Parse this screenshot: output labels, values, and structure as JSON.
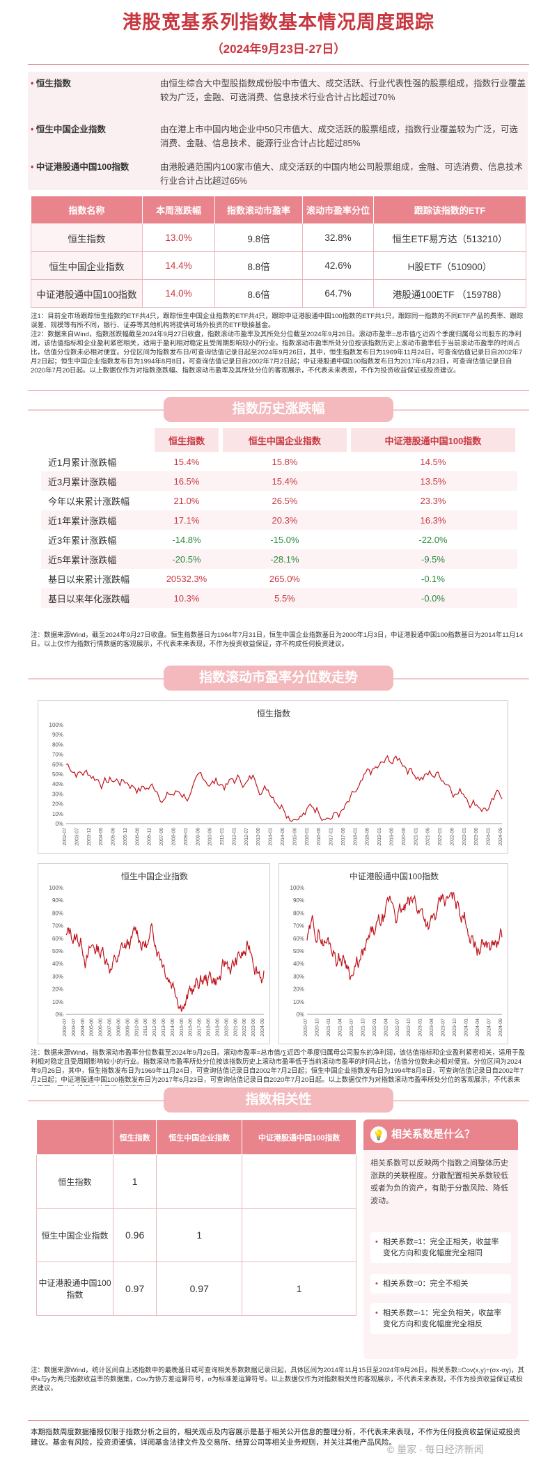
{
  "title": "港股宽基系列指数基本情况周度跟踪",
  "subtitle": "（2024年9月23日-27日）",
  "intro": [
    {
      "name": "恒生指数",
      "desc": "由恒生综合大中型股指数成份股中市值大、成交活跃、行业代表性强的股票组成，指数行业覆盖较为广泛，金融、可选消费、信息技术行业合计占比超过70%"
    },
    {
      "name": "恒生中国企业指数",
      "desc": "由在港上市中国内地企业中50只市值大、成交活跃的股票组成，指数行业覆盖较为广泛，可选消费、金融、信息技术、能源行业合计占比超过85%"
    },
    {
      "name": "中证港股通中国100指数",
      "desc": "由港股通范围内100家市值大、成交活跃的中国内地公司股票组成，金融、可选消费、信息技术行业合计占比超过65%"
    }
  ],
  "table1": {
    "headers": [
      "指数名称",
      "本周涨跌幅",
      "指数滚动市盈率",
      "滚动市盈率分位",
      "跟踪该指数的ETF"
    ],
    "rows": [
      [
        "恒生指数",
        "13.0%",
        "9.8倍",
        "32.8%",
        "恒生ETF易方达（513210）"
      ],
      [
        "恒生中国企业指数",
        "14.4%",
        "8.8倍",
        "42.6%",
        "H股ETF（510900）"
      ],
      [
        "中证港股通中国100指数",
        "14.0%",
        "8.6倍",
        "64.7%",
        "港股通100ETF （159788）"
      ]
    ]
  },
  "note1": "注1：目前全市场跟踪恒生指数的ETF共4只，跟踪恒生中国企业指数的ETF共4只，跟踪中证港股通中国100指数的ETF共1只，跟踪同一指数的不同ETF产品的费率、跟踪误差、规模等有所不同，银行、证券等其他机构将提供可场外投资的ETF联接基金。\n注2：数据来自Wind，指数涨跌幅截至2024年9月27日收盘，指数滚动市盈率及其所处分位截至2024年9月26日。滚动市盈率=总市值/∑近四个季度归属母公司股东的净利润，该估值指标和企业盈利紧密相关，适用于盈利相对稳定且受周期影响较小的行业。指数滚动市盈率所处分位按该指数历史上滚动市盈率低于当前滚动市盈率的时间占比，估值分位数未必相对便宜。分位区间为指数发布日/可查询估值记录日起至2024年9月26日，其中，恒生指数发布日为1969年11月24日，可查询估值记录日自2002年7月2日起；恒生中国企业指数发布日为1994年8月8日，可查询估值记录日自2002年7月2日起；中证港股通中国100指数发布日为2017年6月23日，可查询估值记录日自2020年7月20日起。以上数据仅作为对指数涨跌幅、指数滚动市盈率及其所处分位的客观展示，不代表未来表现，不作为投资收益保证或投资建议。",
  "section2": "指数历史涨跌幅",
  "table2": {
    "headers": [
      "",
      "恒生指数",
      "恒生中国企业指数",
      "中证港股通中国100指数"
    ],
    "rows": [
      [
        "近1月累计涨跌幅",
        "15.4%",
        "15.8%",
        "14.5%"
      ],
      [
        "近3月累计涨跌幅",
        "16.5%",
        "15.4%",
        "13.5%"
      ],
      [
        "今年以来累计涨跌幅",
        "21.0%",
        "26.5%",
        "23.3%"
      ],
      [
        "近1年累计涨跌幅",
        "17.1%",
        "20.3%",
        "16.3%"
      ],
      [
        "近3年累计涨跌幅",
        "-14.8%",
        "-15.0%",
        "-22.0%"
      ],
      [
        "近5年累计涨跌幅",
        "-20.5%",
        "-28.1%",
        "-9.5%"
      ],
      [
        "基日以来累计涨跌幅",
        "20532.3%",
        "265.0%",
        "-0.1%"
      ],
      [
        "基日以来年化涨跌幅",
        "10.3%",
        "5.5%",
        "-0.0%"
      ]
    ]
  },
  "note2": "注：数据来源Wind，截至2024年9月27日收盘。恒生指数基日为1964年7月31日，恒生中国企业指数基日为2000年1月3日，中证港股通中国100指数基日为2014年11月14日。以上仅作为指数行情数据的客观展示，不代表未来表现，不作为投资收益保证，亦不构成任何投资建议。",
  "section3": "指数滚动市盈率分位数走势",
  "charts": [
    {
      "title": "恒生指数",
      "yticks": [
        "100%",
        "90%",
        "80%",
        "70%",
        "60%",
        "50%",
        "40%",
        "30%",
        "20%",
        "10%",
        "0%"
      ],
      "xticks": [
        "2002-07",
        "2003-07",
        "2003-12",
        "2004-06",
        "2005-06",
        "2005-12",
        "2006-06",
        "2006-12",
        "2007-06",
        "2008-06",
        "2009-01",
        "2009-06",
        "2010-06",
        "2011-01",
        "2012-01",
        "2012-07",
        "2013-06",
        "2014-01",
        "2014-06",
        "2015-06",
        "2016-01",
        "2016-06",
        "2017-01",
        "2017-06",
        "2018-01",
        "2018-06",
        "2019-01",
        "2019-06",
        "2020-06",
        "2021-01",
        "2021-06",
        "2022-01",
        "2022-06",
        "2023-01",
        "2023-06",
        "2024-01",
        "2024-09"
      ],
      "color": "#c0141c"
    },
    {
      "title": "恒生中国企业指数",
      "yticks": [
        "100%",
        "90%",
        "80%",
        "70%",
        "60%",
        "50%",
        "40%",
        "30%",
        "20%",
        "10%",
        "0%"
      ],
      "xticks": [
        "2002-07",
        "2003-07",
        "2004-06",
        "2005-06",
        "2006-06",
        "2007-06",
        "2008-06",
        "2009-06",
        "2010-06",
        "2011-06",
        "2012-06",
        "2013-06",
        "2014-06",
        "2015-06",
        "2016-06",
        "2017-06",
        "2018-06",
        "2019-06",
        "2020-06",
        "2021-06",
        "2022-06",
        "2023-06",
        "2024-09"
      ],
      "color": "#c0141c"
    },
    {
      "title": "中证港股通中国100指数",
      "yticks": [
        "100%",
        "90%",
        "80%",
        "70%",
        "60%",
        "50%",
        "40%",
        "30%",
        "20%",
        "10%",
        "0%"
      ],
      "xticks": [
        "2020-07",
        "2020-10",
        "2021-01",
        "2021-04",
        "2021-07",
        "2021-10",
        "2022-01",
        "2022-04",
        "2022-07",
        "2022-10",
        "2023-01",
        "2023-04",
        "2023-07",
        "2023-10",
        "2024-01",
        "2024-04",
        "2024-07",
        "2024-09"
      ],
      "color": "#c0141c"
    }
  ],
  "note3": "注：数据来源Wind，指数滚动市盈率分位数截至2024年9月26日。滚动市盈率=总市值/∑近四个季度归属母公司股东的净利润，该估值指标和企业盈利紧密相关，适用于盈利相对稳定且受周期影响较小的行业。指数滚动市盈率所处分位按该指数历史上滚动市盈率低于当前滚动市盈率的时间占比，估值分位数未必相对便宜。分位区间为2024年9月26日，其中，恒生指数发布日为1969年11月24日，可查询估值记录日自2002年7月2日起；恒生中国企业指数发布日为1994年8月8日，可查询估值记录日自2002年7月2日起；中证港股通中国100指数发布日为2017年6月23日，可查询估值记录日自2020年7月20日起。以上数据仅作为对指数滚动市盈率所处分位的客观展示，不代表未来表现，不作为投资收益保证或投资建议。",
  "section4": "指数相关性",
  "table3": {
    "headers": [
      "",
      "恒生指数",
      "恒生中国企业指数",
      "中证港股通中国100指数"
    ],
    "rows": [
      [
        "恒生指数",
        "1",
        "",
        ""
      ],
      [
        "恒生中国企业指数",
        "0.96",
        "1",
        ""
      ],
      [
        "中证港股通中国100指数",
        "0.97",
        "0.97",
        "1"
      ]
    ]
  },
  "side": {
    "title": "相关系数是什么？",
    "desc": "相关系数可以反映两个指数之间整体历史涨跌的关联程度。分散配置相关系数较低或者为负的资产，有助于分散风险、降低波动。",
    "bullets": [
      "相关系数=1：完全正相关，收益率变化方向和变化幅度完全相同",
      "相关系数=0：完全不相关",
      "相关系数=-1：完全负相关，收益率变化方向和变化幅度完全相反"
    ]
  },
  "note4": "注：数据来源Wind，统计区间自上述指数中的最晚基日或可查询相关系数数据记录日起，具体区间为2014年11月15日至2024年9月26日。相关系数=Cov(x,y)÷(σx·σy)，其中x与y为两只指数收益率的数据集，Cov为协方差运算符号，σ为标准差运算符号。以上数据仅作为对指数相关性的客观展示，不代表未来表现，不作为投资收益保证或投资建议。",
  "footer": "本期指数周度数据播报仅限于指数分析之目的，相关观点及内容展示是基于相关公开信息的整理分析，不代表未来表现，不作为任何投资收益保证或投资建议。基金有风险，投资须谨慎，详阅基金法律文件及交易所、结算公司等相关业务规则，并关注其他产品风险。",
  "watermark": "© 量家 · 每日经济新闻"
}
